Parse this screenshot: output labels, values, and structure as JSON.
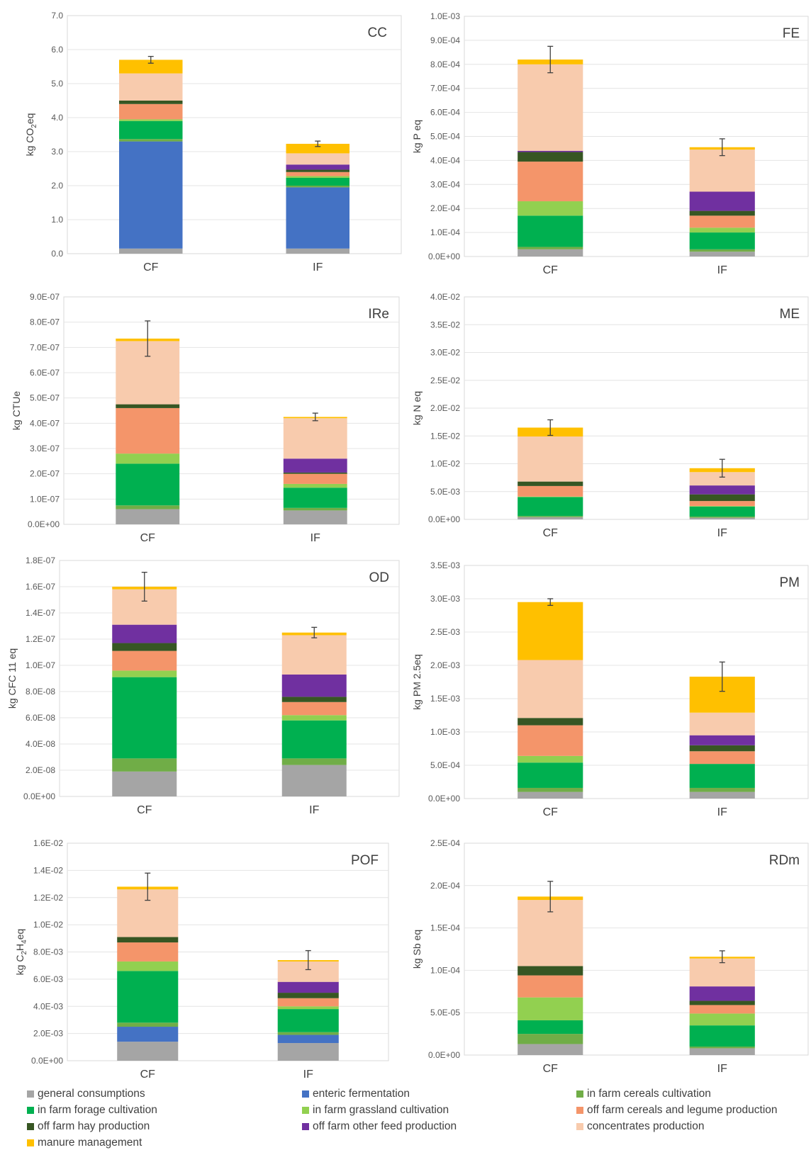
{
  "categories": [
    "CF",
    "IF"
  ],
  "legend": [
    {
      "key": "gc",
      "label": "general consumptions",
      "color": "#a5a5a5"
    },
    {
      "key": "ef",
      "label": "enteric fermentation",
      "color": "#4472c4"
    },
    {
      "key": "fcc",
      "label": "in farm cereals cultivation",
      "color": "#70ad47"
    },
    {
      "key": "ffc",
      "label": "in farm forage cultivation",
      "color": "#00b050"
    },
    {
      "key": "fgc",
      "label": "in farm grassland cultivation",
      "color": "#92d050"
    },
    {
      "key": "ocl",
      "label": "off farm cereals and legume production",
      "color": "#f4956a"
    },
    {
      "key": "ohp",
      "label": "off farm hay production",
      "color": "#375623"
    },
    {
      "key": "ofp",
      "label": "off farm other feed production",
      "color": "#7030a0"
    },
    {
      "key": "cp",
      "label": "concentrates production",
      "color": "#f8cbad"
    },
    {
      "key": "mm",
      "label": "manure management",
      "color": "#ffc000"
    }
  ],
  "chart_data": [
    {
      "type": "bar",
      "stacked": true,
      "title": "CC",
      "ylabel": "kg CO2eq",
      "ylim": [
        0,
        7.0
      ],
      "yticks": [
        "0.0",
        "1.0",
        "2.0",
        "3.0",
        "4.0",
        "5.0",
        "6.0",
        "7.0"
      ],
      "error": [
        0.1,
        0.08
      ],
      "series": {
        "gc": [
          0.15,
          0.15
        ],
        "ef": [
          3.15,
          1.8
        ],
        "fcc": [
          0.07,
          0.05
        ],
        "ffc": [
          0.53,
          0.23
        ],
        "fgc": [
          0.05,
          0.05
        ],
        "ocl": [
          0.45,
          0.12
        ],
        "ohp": [
          0.1,
          0.07
        ],
        "ofp": [
          0.0,
          0.15
        ],
        "cp": [
          0.8,
          0.33
        ],
        "mm": [
          0.4,
          0.28
        ]
      }
    },
    {
      "type": "bar",
      "stacked": true,
      "title": "FE",
      "ylabel": "kg P eq",
      "ylim": [
        0,
        0.001
      ],
      "yticks": [
        "0.0E+00",
        "1.0E-04",
        "2.0E-04",
        "3.0E-04",
        "4.0E-04",
        "5.0E-04",
        "6.0E-04",
        "7.0E-04",
        "8.0E-04",
        "9.0E-04",
        "1.0E-03"
      ],
      "error": [
        5.5e-05,
        3.5e-05
      ],
      "series": {
        "gc": [
          3e-05,
          2e-05
        ],
        "ef": [
          0,
          0
        ],
        "fcc": [
          1e-05,
          1e-05
        ],
        "ffc": [
          0.00013,
          7e-05
        ],
        "fgc": [
          6e-05,
          2e-05
        ],
        "ocl": [
          0.000165,
          5e-05
        ],
        "ohp": [
          4e-05,
          2e-05
        ],
        "ofp": [
          5e-06,
          8e-05
        ],
        "cp": [
          0.00036,
          0.000175
        ],
        "mm": [
          2e-05,
          1e-05
        ]
      }
    },
    {
      "type": "bar",
      "stacked": true,
      "title": "IRe",
      "ylabel": "kg CTUe",
      "ylim": [
        0,
        9e-07
      ],
      "yticks": [
        "0.0E+00",
        "1.0E-07",
        "2.0E-07",
        "3.0E-07",
        "4.0E-07",
        "5.0E-07",
        "6.0E-07",
        "7.0E-07",
        "8.0E-07",
        "9.0E-07"
      ],
      "error": [
        7e-08,
        1.5e-08
      ],
      "series": {
        "gc": [
          6e-08,
          5.5e-08
        ],
        "ef": [
          0,
          0
        ],
        "fcc": [
          1.5e-08,
          1e-08
        ],
        "ffc": [
          1.65e-07,
          8e-08
        ],
        "fgc": [
          4e-08,
          1.5e-08
        ],
        "ocl": [
          1.8e-07,
          4e-08
        ],
        "ohp": [
          1.5e-08,
          5e-09
        ],
        "ofp": [
          0,
          5.5e-08
        ],
        "cp": [
          2.5e-07,
          1.6e-07
        ],
        "mm": [
          1e-08,
          5e-09
        ]
      }
    },
    {
      "type": "bar",
      "stacked": true,
      "title": "ME",
      "ylabel": "kg N eq",
      "ylim": [
        0,
        0.04
      ],
      "yticks": [
        "0.0E+00",
        "5.0E-03",
        "1.0E-02",
        "1.5E-02",
        "2.0E-02",
        "2.5E-02",
        "3.0E-02",
        "3.5E-02",
        "4.0E-02"
      ],
      "error": [
        0.0014,
        0.0016
      ],
      "series": {
        "gc": [
          0.0004,
          0.0003
        ],
        "ef": [
          0,
          0
        ],
        "fcc": [
          0.0002,
          0.0002
        ],
        "ffc": [
          0.0034,
          0.0018
        ],
        "fgc": [
          0.0001,
          0.0001
        ],
        "ocl": [
          0.0019,
          0.0009
        ],
        "ohp": [
          0.0008,
          0.0012
        ],
        "ofp": [
          0,
          0.0016
        ],
        "cp": [
          0.0081,
          0.0024
        ],
        "mm": [
          0.0016,
          0.0007
        ]
      }
    },
    {
      "type": "bar",
      "stacked": true,
      "title": "OD",
      "ylabel": "kg CFC 11 eq",
      "ylim": [
        0,
        1.8e-07
      ],
      "yticks": [
        "0.0E+00",
        "2.0E-08",
        "4.0E-08",
        "6.0E-08",
        "8.0E-08",
        "1.0E-07",
        "1.2E-07",
        "1.4E-07",
        "1.6E-07",
        "1.8E-07"
      ],
      "error": [
        1.1e-08,
        4e-09
      ],
      "series": {
        "gc": [
          1.9e-08,
          2.4e-08
        ],
        "ef": [
          0,
          0
        ],
        "fcc": [
          1e-08,
          5e-09
        ],
        "ffc": [
          6.2e-08,
          2.9e-08
        ],
        "fgc": [
          5e-09,
          4e-09
        ],
        "ocl": [
          1.5e-08,
          1e-08
        ],
        "ohp": [
          6e-09,
          4e-09
        ],
        "ofp": [
          1.4e-08,
          1.7e-08
        ],
        "cp": [
          2.7e-08,
          3e-08
        ],
        "mm": [
          2e-09,
          2e-09
        ]
      }
    },
    {
      "type": "bar",
      "stacked": true,
      "title": "PM",
      "ylabel": "kg PM 2.5eq",
      "ylim": [
        0,
        0.0035
      ],
      "yticks": [
        "0.0E+00",
        "5.0E-04",
        "1.0E-03",
        "1.5E-03",
        "2.0E-03",
        "2.5E-03",
        "3.0E-03",
        "3.5E-03"
      ],
      "error": [
        5e-05,
        0.00022
      ],
      "series": {
        "gc": [
          0.0001,
          0.0001
        ],
        "ef": [
          0,
          0
        ],
        "fcc": [
          6e-05,
          6e-05
        ],
        "ffc": [
          0.00038,
          0.00036
        ],
        "fgc": [
          0.0001,
          0.0
        ],
        "ocl": [
          0.00046,
          0.00019
        ],
        "ohp": [
          0.00011,
          9e-05
        ],
        "ofp": [
          0,
          0.00015
        ],
        "cp": [
          0.00087,
          0.00034
        ],
        "mm": [
          0.00087,
          0.00054
        ]
      }
    },
    {
      "type": "bar",
      "stacked": true,
      "title": "POF",
      "ylabel": "kg C2H4eq",
      "ylim": [
        0,
        0.016
      ],
      "yticks": [
        "0.0E+00",
        "2.0E-03",
        "4.0E-03",
        "6.0E-03",
        "8.0E-03",
        "1.0E-02",
        "1.2E-02",
        "1.4E-02",
        "1.6E-02"
      ],
      "error": [
        0.001,
        0.0007
      ],
      "series": {
        "gc": [
          0.0014,
          0.0013
        ],
        "ef": [
          0.0011,
          0.0006
        ],
        "fcc": [
          0.0003,
          0.0002
        ],
        "ffc": [
          0.0038,
          0.0017
        ],
        "fgc": [
          0.0007,
          0.0002
        ],
        "ocl": [
          0.0014,
          0.0006
        ],
        "ohp": [
          0.0004,
          0.0004
        ],
        "ofp": [
          0,
          0.0008
        ],
        "cp": [
          0.0035,
          0.0015
        ],
        "mm": [
          0.0002,
          0.0001
        ]
      }
    },
    {
      "type": "bar",
      "stacked": true,
      "title": "RDm",
      "ylabel": "kg Sb eq",
      "ylim": [
        0,
        0.00025
      ],
      "yticks": [
        "0.0E+00",
        "5.0E-05",
        "1.0E-04",
        "1.5E-04",
        "2.0E-04",
        "2.5E-04"
      ],
      "error": [
        1.8e-05,
        7e-06
      ],
      "series": {
        "gc": [
          1.3e-05,
          8e-06
        ],
        "ef": [
          0,
          0
        ],
        "fcc": [
          1.2e-05,
          2e-06
        ],
        "ffc": [
          1.6e-05,
          2.5e-05
        ],
        "fgc": [
          2.7e-05,
          1.4e-05
        ],
        "ocl": [
          2.6e-05,
          1e-05
        ],
        "ohp": [
          1.1e-05,
          5e-06
        ],
        "ofp": [
          0,
          1.7e-05
        ],
        "cp": [
          7.8e-05,
          3.3e-05
        ],
        "mm": [
          4e-06,
          2e-06
        ]
      }
    }
  ]
}
